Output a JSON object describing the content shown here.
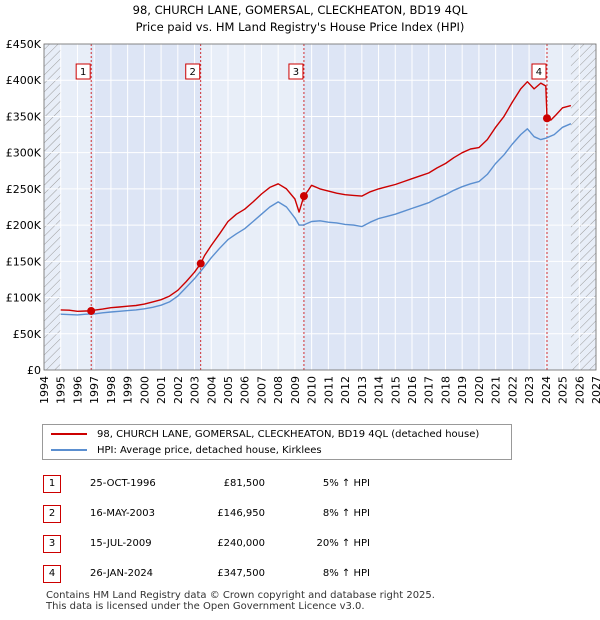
{
  "chart_data": {
    "type": "line",
    "title": "98, CHURCH LANE, GOMERSAL, CLECKHEATON, BD19 4QL",
    "subtitle": "Price paid vs. HM Land Registry's House Price Index (HPI)",
    "xlim": [
      1994,
      2027
    ],
    "ylim": [
      0,
      450000
    ],
    "x_ticks": [
      1994,
      1995,
      1996,
      1997,
      1998,
      1999,
      2000,
      2001,
      2002,
      2003,
      2004,
      2005,
      2006,
      2007,
      2008,
      2009,
      2010,
      2011,
      2012,
      2013,
      2014,
      2015,
      2016,
      2017,
      2018,
      2019,
      2020,
      2021,
      2022,
      2023,
      2024,
      2025,
      2026,
      2027
    ],
    "y_ticks": [
      {
        "value": 0,
        "label": "£0"
      },
      {
        "value": 50000,
        "label": "£50K"
      },
      {
        "value": 100000,
        "label": "£100K"
      },
      {
        "value": 150000,
        "label": "£150K"
      },
      {
        "value": 200000,
        "label": "£200K"
      },
      {
        "value": 250000,
        "label": "£250K"
      },
      {
        "value": 300000,
        "label": "£300K"
      },
      {
        "value": 350000,
        "label": "£350K"
      },
      {
        "value": 400000,
        "label": "£400K"
      },
      {
        "value": 450000,
        "label": "£450K"
      }
    ],
    "data_start": 1995.0,
    "data_end": 2025.5,
    "series": [
      {
        "name": "98, CHURCH LANE, GOMERSAL, CLECKHEATON, BD19 4QL (detached house)",
        "color": "#cc0000",
        "points": [
          [
            1995.0,
            83000
          ],
          [
            1995.5,
            82500
          ],
          [
            1996.0,
            81000
          ],
          [
            1996.5,
            81500
          ],
          [
            1996.82,
            81500
          ],
          [
            1997.0,
            82500
          ],
          [
            1997.5,
            84000
          ],
          [
            1998.0,
            86000
          ],
          [
            1998.5,
            87000
          ],
          [
            1999.0,
            88000
          ],
          [
            1999.5,
            89000
          ],
          [
            2000.0,
            91000
          ],
          [
            2000.5,
            94000
          ],
          [
            2001.0,
            97000
          ],
          [
            2001.5,
            102000
          ],
          [
            2002.0,
            110000
          ],
          [
            2002.5,
            122000
          ],
          [
            2003.0,
            135000
          ],
          [
            2003.37,
            146950
          ],
          [
            2003.6,
            158000
          ],
          [
            2004.0,
            172000
          ],
          [
            2004.5,
            188000
          ],
          [
            2005.0,
            205000
          ],
          [
            2005.5,
            215000
          ],
          [
            2006.0,
            222000
          ],
          [
            2006.5,
            232000
          ],
          [
            2007.0,
            243000
          ],
          [
            2007.5,
            252000
          ],
          [
            2008.0,
            257000
          ],
          [
            2008.5,
            250000
          ],
          [
            2009.0,
            236000
          ],
          [
            2009.25,
            218000
          ],
          [
            2009.54,
            240000
          ],
          [
            2009.8,
            248000
          ],
          [
            2010.0,
            255000
          ],
          [
            2010.5,
            250000
          ],
          [
            2011.0,
            247000
          ],
          [
            2011.5,
            244000
          ],
          [
            2012.0,
            242000
          ],
          [
            2012.5,
            241000
          ],
          [
            2013.0,
            240000
          ],
          [
            2013.5,
            246000
          ],
          [
            2014.0,
            250000
          ],
          [
            2014.5,
            253000
          ],
          [
            2015.0,
            256000
          ],
          [
            2015.5,
            260000
          ],
          [
            2016.0,
            264000
          ],
          [
            2016.5,
            268000
          ],
          [
            2017.0,
            272000
          ],
          [
            2017.5,
            279000
          ],
          [
            2018.0,
            285000
          ],
          [
            2018.5,
            293000
          ],
          [
            2019.0,
            300000
          ],
          [
            2019.5,
            305000
          ],
          [
            2020.0,
            307000
          ],
          [
            2020.5,
            318000
          ],
          [
            2021.0,
            335000
          ],
          [
            2021.5,
            350000
          ],
          [
            2022.0,
            370000
          ],
          [
            2022.5,
            388000
          ],
          [
            2022.9,
            398000
          ],
          [
            2023.3,
            388000
          ],
          [
            2023.7,
            396000
          ],
          [
            2024.0,
            392000
          ],
          [
            2024.07,
            347500
          ],
          [
            2024.3,
            345000
          ],
          [
            2024.6,
            352000
          ],
          [
            2025.0,
            362000
          ],
          [
            2025.5,
            365000
          ]
        ]
      },
      {
        "name": "HPI: Average price, detached house, Kirklees",
        "color": "#5b8fd0",
        "points": [
          [
            1995.0,
            77000
          ],
          [
            1995.5,
            76500
          ],
          [
            1996.0,
            76000
          ],
          [
            1996.5,
            77000
          ],
          [
            1997.0,
            77500
          ],
          [
            1997.5,
            79000
          ],
          [
            1998.0,
            80000
          ],
          [
            1998.5,
            81000
          ],
          [
            1999.0,
            82000
          ],
          [
            1999.5,
            83000
          ],
          [
            2000.0,
            84500
          ],
          [
            2000.5,
            86500
          ],
          [
            2001.0,
            89500
          ],
          [
            2001.5,
            94000
          ],
          [
            2002.0,
            102000
          ],
          [
            2002.5,
            114000
          ],
          [
            2003.0,
            126000
          ],
          [
            2003.5,
            140000
          ],
          [
            2004.0,
            155000
          ],
          [
            2004.5,
            168000
          ],
          [
            2005.0,
            180000
          ],
          [
            2005.5,
            188000
          ],
          [
            2006.0,
            195000
          ],
          [
            2006.5,
            205000
          ],
          [
            2007.0,
            215000
          ],
          [
            2007.5,
            225000
          ],
          [
            2008.0,
            232000
          ],
          [
            2008.5,
            225000
          ],
          [
            2009.0,
            210000
          ],
          [
            2009.25,
            200000
          ],
          [
            2009.5,
            200000
          ],
          [
            2010.0,
            205000
          ],
          [
            2010.5,
            206000
          ],
          [
            2011.0,
            204000
          ],
          [
            2011.5,
            203000
          ],
          [
            2012.0,
            201000
          ],
          [
            2012.5,
            200000
          ],
          [
            2013.0,
            198000
          ],
          [
            2013.5,
            204000
          ],
          [
            2014.0,
            209000
          ],
          [
            2014.5,
            212000
          ],
          [
            2015.0,
            215000
          ],
          [
            2015.5,
            219000
          ],
          [
            2016.0,
            223000
          ],
          [
            2016.5,
            227000
          ],
          [
            2017.0,
            231000
          ],
          [
            2017.5,
            237000
          ],
          [
            2018.0,
            242000
          ],
          [
            2018.5,
            248000
          ],
          [
            2019.0,
            253000
          ],
          [
            2019.5,
            257000
          ],
          [
            2020.0,
            260000
          ],
          [
            2020.5,
            270000
          ],
          [
            2021.0,
            285000
          ],
          [
            2021.5,
            297000
          ],
          [
            2022.0,
            312000
          ],
          [
            2022.5,
            325000
          ],
          [
            2022.9,
            333000
          ],
          [
            2023.3,
            322000
          ],
          [
            2023.7,
            318000
          ],
          [
            2024.0,
            320000
          ],
          [
            2024.5,
            325000
          ],
          [
            2025.0,
            335000
          ],
          [
            2025.5,
            340000
          ]
        ]
      }
    ],
    "sales": [
      {
        "num": "1",
        "x": 1996.82,
        "price": 81500,
        "date": "25-OCT-1996",
        "price_label": "£81,500",
        "hpi_label": "5% ↑ HPI"
      },
      {
        "num": "2",
        "x": 2003.37,
        "price": 146950,
        "date": "16-MAY-2003",
        "price_label": "£146,950",
        "hpi_label": "8% ↑ HPI"
      },
      {
        "num": "3",
        "x": 2009.54,
        "price": 240000,
        "date": "15-JUL-2009",
        "price_label": "£240,000",
        "hpi_label": "20% ↑ HPI"
      },
      {
        "num": "4",
        "x": 2024.07,
        "price": 347500,
        "date": "26-JAN-2024",
        "price_label": "£347,500",
        "hpi_label": "8% ↑ HPI"
      }
    ],
    "legend": [
      {
        "label": "98, CHURCH LANE, GOMERSAL, CLECKHEATON, BD19 4QL (detached house)",
        "color": "#cc0000"
      },
      {
        "label": "HPI: Average price, detached house, Kirklees",
        "color": "#5b8fd0"
      }
    ]
  },
  "footer": {
    "line1": "Contains HM Land Registry data © Crown copyright and database right 2025.",
    "line2": "This data is licensed under the Open Government Licence v3.0."
  },
  "colors": {
    "plot_bg": "#e8eef8",
    "shade": "#dde5f5",
    "grid": "#ffffff",
    "hatch": "#999999",
    "marker_line": "#cc0000"
  }
}
